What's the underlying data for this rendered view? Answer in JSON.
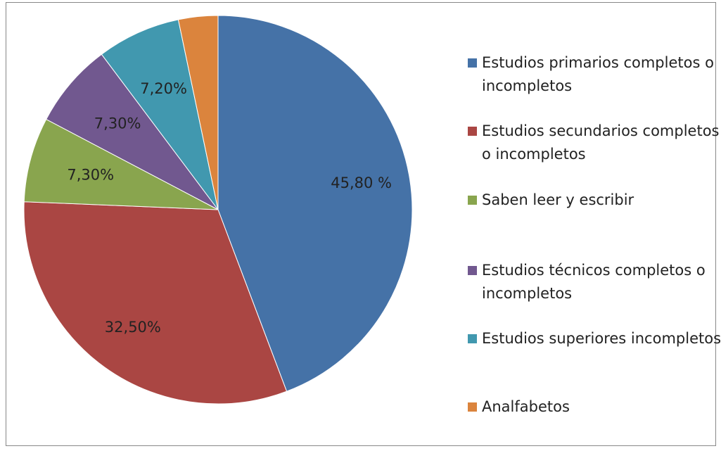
{
  "chart_data": {
    "type": "pie",
    "categories": [
      "Estudios primarios completos o incompletos",
      "Estudios secundarios completos o incompletos",
      "Saben leer y escribir",
      "Estudios técnicos completos o incompletos",
      "Estudios superiores incompletos",
      "Analfabetos"
    ],
    "values": [
      45.8,
      32.5,
      7.3,
      7.3,
      7.2,
      3.4
    ],
    "value_labels": [
      "45,80 %",
      "32,50%",
      "7,30%",
      "7,30%",
      "7,20%",
      null
    ],
    "colors": [
      "#4572a7",
      "#aa4643",
      "#89a54e",
      "#71588f",
      "#4198af",
      "#db843d"
    ]
  }
}
